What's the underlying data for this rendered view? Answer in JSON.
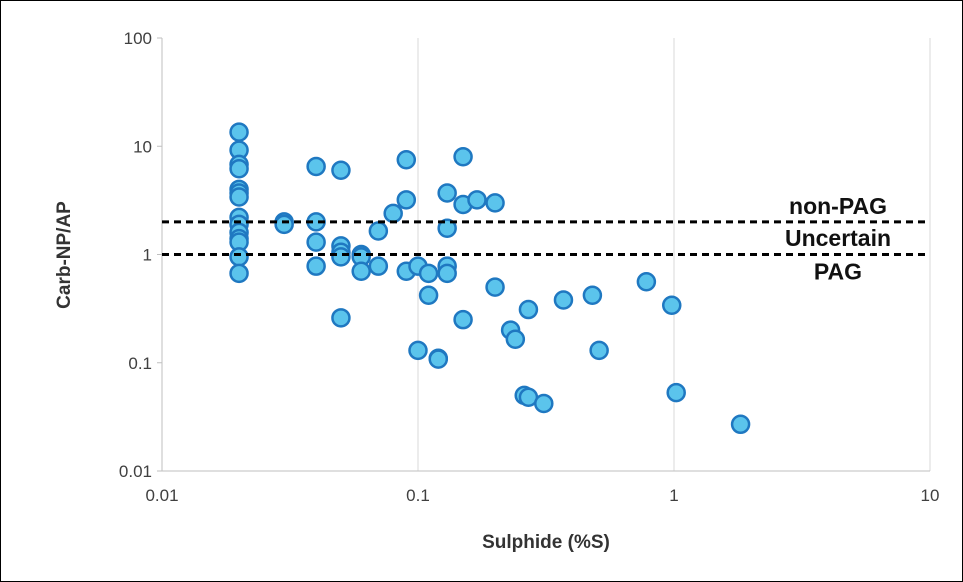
{
  "chart_data": {
    "type": "scatter",
    "xlabel": "Sulphide (%S)",
    "ylabel": "Carb-NP/AP",
    "xscale": "log",
    "yscale": "log",
    "xlim": [
      0.01,
      10
    ],
    "ylim": [
      0.01,
      100
    ],
    "x_ticks": [
      "0.01",
      "0.1",
      "1",
      "10"
    ],
    "y_ticks": [
      "0.01",
      "0.1",
      "1",
      "10",
      "100"
    ],
    "grid": "vertical",
    "marker_fill": "#5bc4ec",
    "marker_edge": "#1f78c1",
    "reference_lines": [
      {
        "y": 2,
        "style": "dashed"
      },
      {
        "y": 1,
        "style": "dashed"
      }
    ],
    "annotations": [
      {
        "text": "non-PAG"
      },
      {
        "text": "Uncertain"
      },
      {
        "text": "PAG"
      }
    ],
    "points": [
      [
        0.02,
        13.5
      ],
      [
        0.02,
        9.2
      ],
      [
        0.02,
        6.8
      ],
      [
        0.02,
        6.2
      ],
      [
        0.02,
        4.0
      ],
      [
        0.02,
        3.7
      ],
      [
        0.02,
        3.4
      ],
      [
        0.02,
        2.2
      ],
      [
        0.02,
        1.9
      ],
      [
        0.02,
        1.6
      ],
      [
        0.02,
        1.4
      ],
      [
        0.02,
        1.3
      ],
      [
        0.02,
        0.95
      ],
      [
        0.02,
        0.67
      ],
      [
        0.03,
        2.0
      ],
      [
        0.03,
        1.9
      ],
      [
        0.04,
        6.5
      ],
      [
        0.04,
        2.0
      ],
      [
        0.04,
        1.3
      ],
      [
        0.04,
        0.78
      ],
      [
        0.05,
        6.0
      ],
      [
        0.05,
        1.2
      ],
      [
        0.05,
        1.05
      ],
      [
        0.05,
        0.95
      ],
      [
        0.05,
        0.26
      ],
      [
        0.06,
        1.0
      ],
      [
        0.06,
        0.95
      ],
      [
        0.06,
        0.7
      ],
      [
        0.07,
        1.65
      ],
      [
        0.07,
        0.78
      ],
      [
        0.08,
        2.4
      ],
      [
        0.09,
        7.5
      ],
      [
        0.09,
        3.2
      ],
      [
        0.09,
        0.7
      ],
      [
        0.1,
        0.78
      ],
      [
        0.1,
        0.13
      ],
      [
        0.11,
        0.67
      ],
      [
        0.11,
        0.42
      ],
      [
        0.12,
        0.11
      ],
      [
        0.12,
        0.108
      ],
      [
        0.13,
        3.7
      ],
      [
        0.13,
        1.75
      ],
      [
        0.13,
        0.78
      ],
      [
        0.13,
        0.67
      ],
      [
        0.15,
        8.0
      ],
      [
        0.15,
        2.9
      ],
      [
        0.15,
        0.25
      ],
      [
        0.17,
        3.2
      ],
      [
        0.2,
        3.0
      ],
      [
        0.2,
        0.5
      ],
      [
        0.23,
        0.2
      ],
      [
        0.24,
        0.165
      ],
      [
        0.26,
        0.05
      ],
      [
        0.27,
        0.31
      ],
      [
        0.27,
        0.048
      ],
      [
        0.31,
        0.042
      ],
      [
        0.37,
        0.38
      ],
      [
        0.48,
        0.42
      ],
      [
        0.51,
        0.13
      ],
      [
        0.78,
        0.56
      ],
      [
        0.98,
        0.34
      ],
      [
        1.02,
        0.053
      ],
      [
        1.82,
        0.027
      ]
    ]
  }
}
